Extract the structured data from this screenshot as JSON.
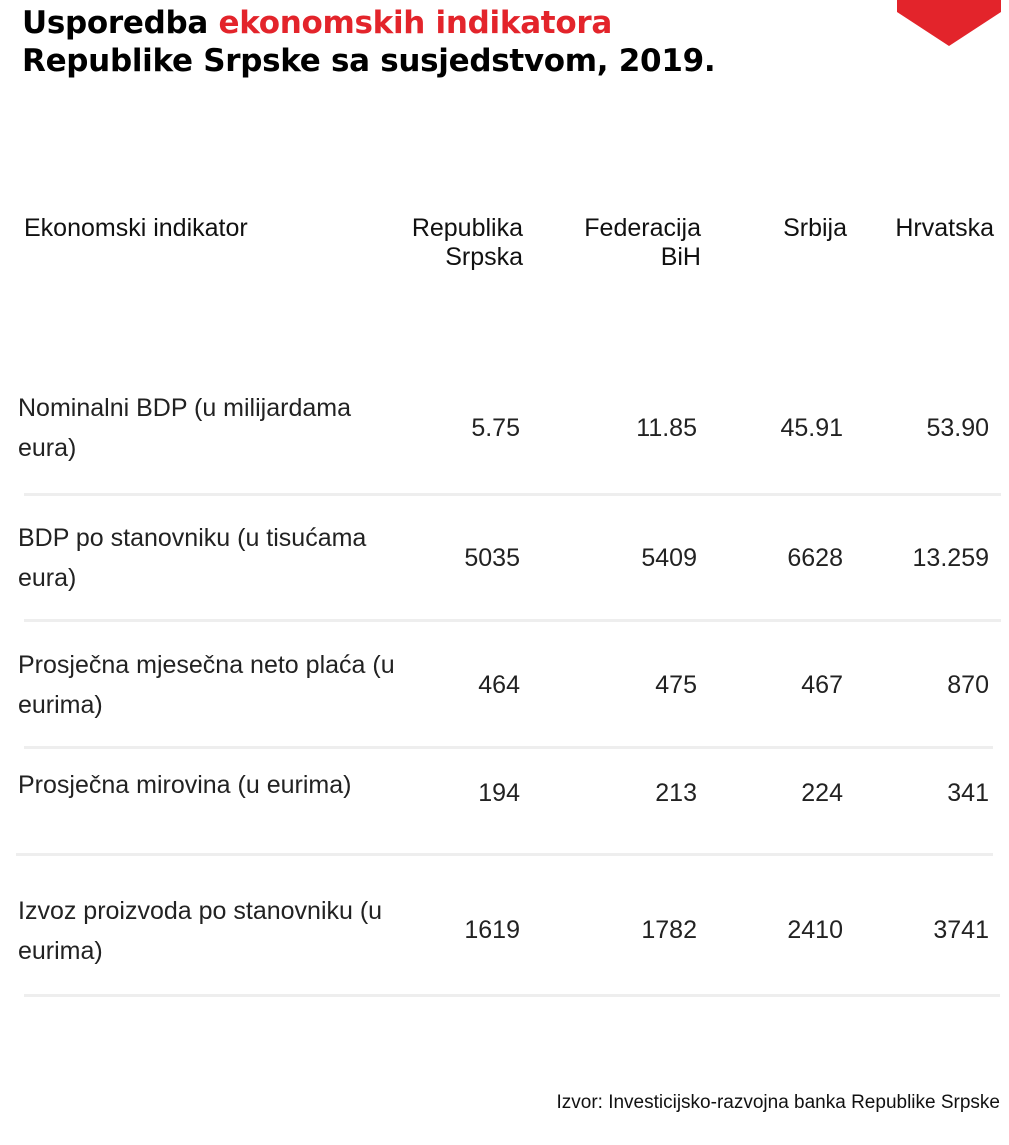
{
  "title": {
    "prefix": "Usporedba ",
    "highlight": "ekonomskih indikatora",
    "rest": " Republike Srpske sa susjedstvom, 2019."
  },
  "colors": {
    "accent": "#e3242b",
    "separator": "#eeeeee",
    "text": "#222222"
  },
  "chart_data": {
    "type": "table",
    "columns": [
      "Ekonomski indikator",
      "Republika Srpska",
      "Federacija BiH",
      "Srbija",
      "Hrvatska"
    ],
    "rows": [
      {
        "label": "Nominalni BDP (u milijardama eura)",
        "values": [
          "5.75",
          "11.85",
          "45.91",
          "53.90"
        ]
      },
      {
        "label": "BDP po stanovniku (u tisućama eura)",
        "values": [
          "5035",
          "5409",
          "6628",
          "13.259"
        ]
      },
      {
        "label": "Prosječna mjesečna neto plaća (u eurima)",
        "values": [
          "464",
          "475",
          "467",
          "870"
        ]
      },
      {
        "label": "Prosječna mirovina (u eurima)",
        "values": [
          "194",
          "213",
          "224",
          "341"
        ]
      },
      {
        "label": "Izvoz proizvoda po stanovniku (u eurima)",
        "values": [
          "1619",
          "1782",
          "2410",
          "3741"
        ]
      }
    ]
  },
  "source": "Izvor: Investicijsko-razvojna banka Republike Srpske"
}
